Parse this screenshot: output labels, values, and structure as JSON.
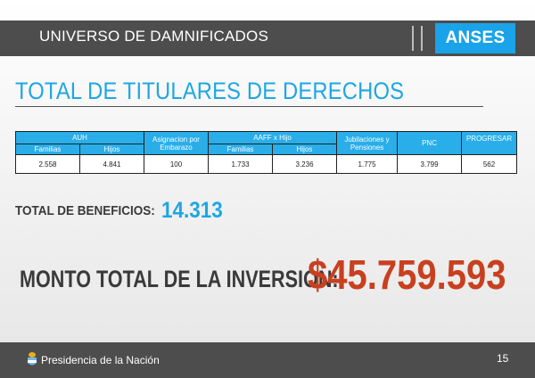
{
  "header": {
    "title": "UNIVERSO DE DAMNIFICADOS",
    "brand": "ANSES"
  },
  "main_title": "TOTAL DE TITULARES DE DERECHOS",
  "table": {
    "groups": {
      "auh": "AUH",
      "asignacion": "Asignacion por Embarazo",
      "aaff": "AAFF x Hijo",
      "jubilaciones": "Jubilaciones y Pensiones",
      "pnc": "PNC",
      "progresar": "PROGRESAR"
    },
    "subheaders": {
      "auh_familias": "Familias",
      "auh_hijos": "Hijos",
      "aaff_familias": "Familias",
      "aaff_hijos": "Hijos"
    },
    "values": {
      "auh_familias": "2.558",
      "auh_hijos": "4.841",
      "asignacion": "100",
      "aaff_familias": "1.733",
      "aaff_hijos": "3.236",
      "jubilaciones": "1.775",
      "pnc": "3.799",
      "progresar": "562"
    }
  },
  "beneficios": {
    "label": "TOTAL DE BENEFICIOS:",
    "value": "14.313"
  },
  "monto": {
    "label": "MONTO TOTAL DE LA INVERSIÓN:",
    "value": "$45.759.593"
  },
  "footer": {
    "org": "Presidencia de la Nación",
    "page": "15"
  },
  "colors": {
    "bar": "#4d4d4d",
    "accent_blue": "#1ea6e3",
    "table_header": "#29aee9",
    "amount_red": "#c8401f"
  }
}
